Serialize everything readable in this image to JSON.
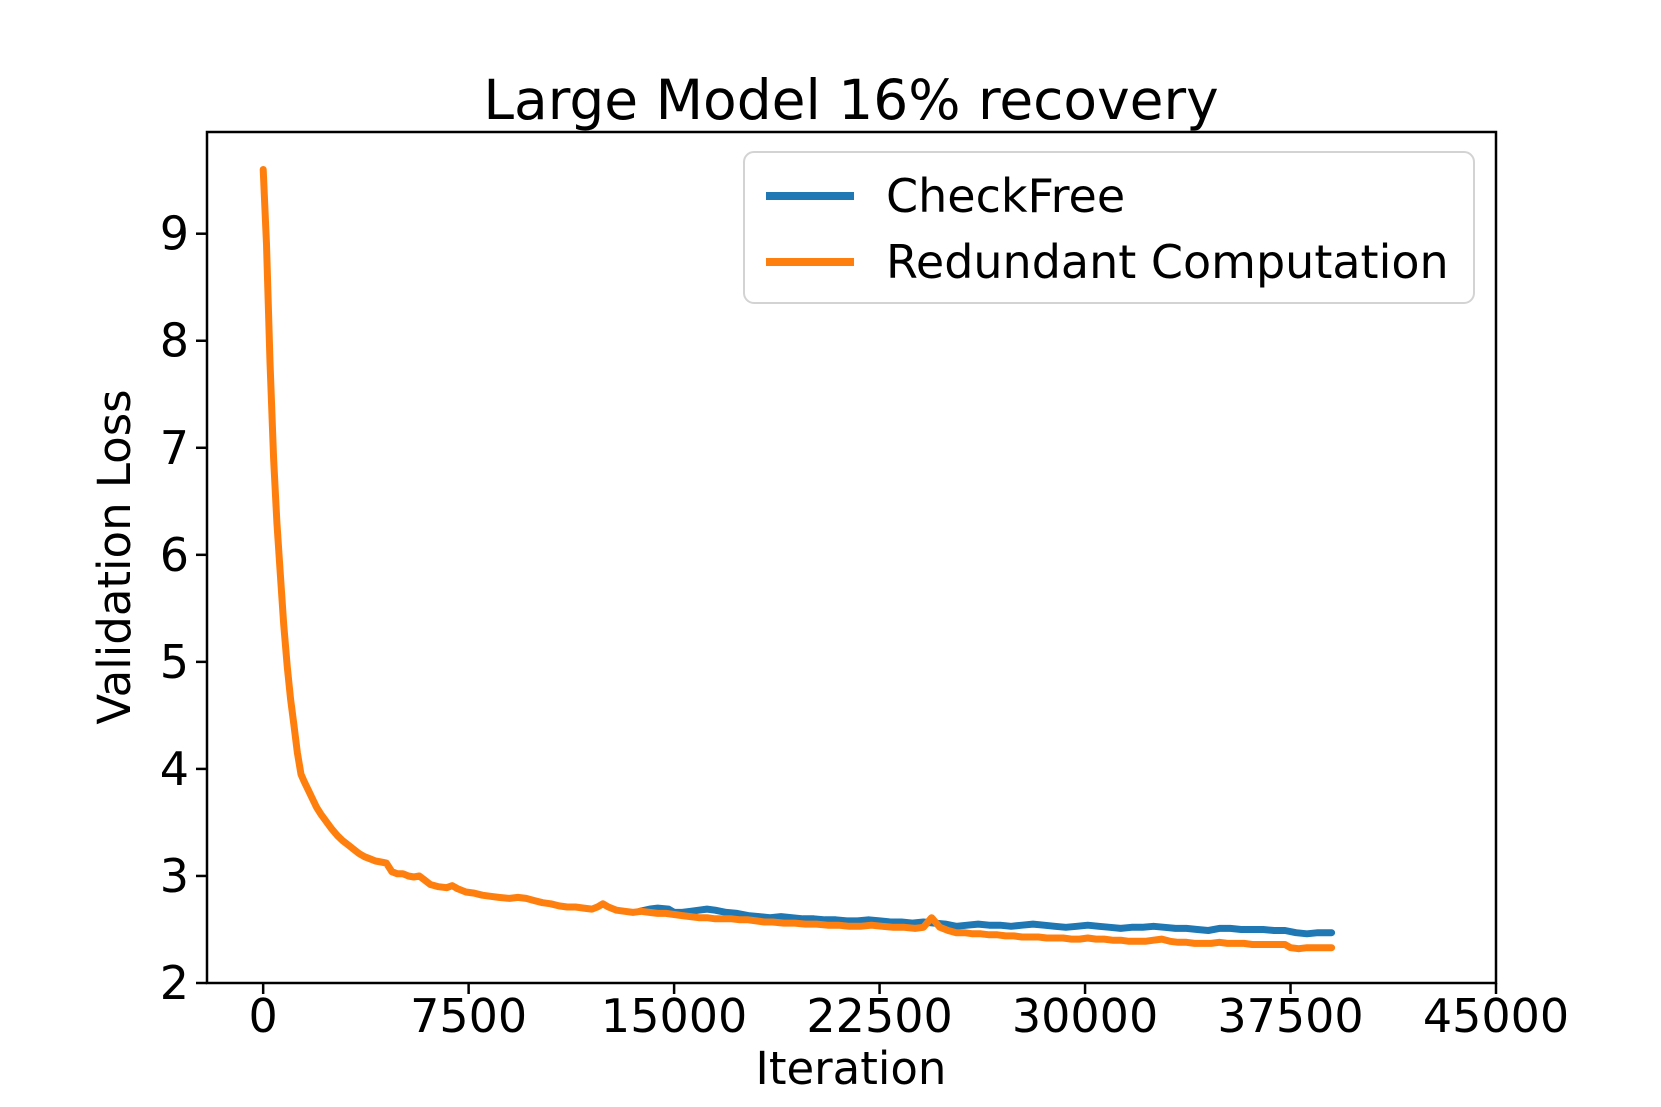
{
  "figure": {
    "background": "#ffffff",
    "axis_color": "#000000",
    "text_color": "#000000"
  },
  "chart_data": {
    "type": "line",
    "title": "Large Model 16% recovery",
    "xlabel": "Iteration",
    "ylabel": "Validation Loss",
    "xlim": [
      -2050,
      45000
    ],
    "ylim": [
      2,
      9.95
    ],
    "xticks": [
      0,
      7500,
      15000,
      22500,
      30000,
      37500,
      45000
    ],
    "yticks": [
      2,
      3,
      4,
      5,
      6,
      7,
      8,
      9
    ],
    "grid": false,
    "legend_position": "upper right",
    "series": [
      {
        "name": "CheckFree",
        "color": "#1f77b4",
        "linewidth": 7,
        "points": [
          [
            13750,
            2.67
          ],
          [
            14100,
            2.69
          ],
          [
            14400,
            2.7
          ],
          [
            14800,
            2.69
          ],
          [
            15000,
            2.66
          ],
          [
            15300,
            2.66
          ],
          [
            15600,
            2.67
          ],
          [
            15900,
            2.68
          ],
          [
            16200,
            2.69
          ],
          [
            16500,
            2.68
          ],
          [
            16900,
            2.66
          ],
          [
            17300,
            2.65
          ],
          [
            17700,
            2.63
          ],
          [
            18100,
            2.62
          ],
          [
            18500,
            2.61
          ],
          [
            18900,
            2.62
          ],
          [
            19300,
            2.61
          ],
          [
            19700,
            2.6
          ],
          [
            20100,
            2.6
          ],
          [
            20500,
            2.59
          ],
          [
            20900,
            2.59
          ],
          [
            21300,
            2.58
          ],
          [
            21700,
            2.58
          ],
          [
            22100,
            2.59
          ],
          [
            22500,
            2.58
          ],
          [
            22900,
            2.57
          ],
          [
            23300,
            2.57
          ],
          [
            23700,
            2.56
          ],
          [
            24100,
            2.57
          ],
          [
            24500,
            2.56
          ],
          [
            24900,
            2.55
          ],
          [
            25300,
            2.53
          ],
          [
            25700,
            2.54
          ],
          [
            26100,
            2.55
          ],
          [
            26500,
            2.54
          ],
          [
            26900,
            2.54
          ],
          [
            27300,
            2.53
          ],
          [
            27700,
            2.54
          ],
          [
            28100,
            2.55
          ],
          [
            28500,
            2.54
          ],
          [
            28900,
            2.53
          ],
          [
            29300,
            2.52
          ],
          [
            29700,
            2.53
          ],
          [
            30100,
            2.54
          ],
          [
            30500,
            2.53
          ],
          [
            30900,
            2.52
          ],
          [
            31300,
            2.51
          ],
          [
            31700,
            2.52
          ],
          [
            32100,
            2.52
          ],
          [
            32500,
            2.53
          ],
          [
            32900,
            2.52
          ],
          [
            33300,
            2.51
          ],
          [
            33700,
            2.51
          ],
          [
            34100,
            2.5
          ],
          [
            34500,
            2.49
          ],
          [
            34900,
            2.51
          ],
          [
            35300,
            2.51
          ],
          [
            35700,
            2.5
          ],
          [
            36100,
            2.5
          ],
          [
            36500,
            2.5
          ],
          [
            36900,
            2.49
          ],
          [
            37300,
            2.49
          ],
          [
            37700,
            2.47
          ],
          [
            38100,
            2.46
          ],
          [
            38500,
            2.47
          ],
          [
            39000,
            2.47
          ]
        ]
      },
      {
        "name": "Redundant Computation",
        "color": "#ff7f0e",
        "linewidth": 7,
        "points": [
          [
            0,
            9.6
          ],
          [
            120,
            8.9
          ],
          [
            250,
            7.8
          ],
          [
            380,
            6.9
          ],
          [
            500,
            6.3
          ],
          [
            620,
            5.85
          ],
          [
            750,
            5.35
          ],
          [
            880,
            4.95
          ],
          [
            1000,
            4.65
          ],
          [
            1120,
            4.42
          ],
          [
            1250,
            4.15
          ],
          [
            1380,
            3.95
          ],
          [
            1500,
            3.88
          ],
          [
            1650,
            3.8
          ],
          [
            1800,
            3.72
          ],
          [
            1950,
            3.64
          ],
          [
            2100,
            3.58
          ],
          [
            2300,
            3.51
          ],
          [
            2500,
            3.44
          ],
          [
            2700,
            3.38
          ],
          [
            2900,
            3.33
          ],
          [
            3100,
            3.29
          ],
          [
            3300,
            3.25
          ],
          [
            3500,
            3.21
          ],
          [
            3700,
            3.18
          ],
          [
            3900,
            3.16
          ],
          [
            4100,
            3.14
          ],
          [
            4300,
            3.13
          ],
          [
            4500,
            3.12
          ],
          [
            4700,
            3.04
          ],
          [
            4900,
            3.02
          ],
          [
            5100,
            3.02
          ],
          [
            5300,
            3.0
          ],
          [
            5500,
            2.99
          ],
          [
            5700,
            3.0
          ],
          [
            5900,
            2.96
          ],
          [
            6100,
            2.92
          ],
          [
            6400,
            2.9
          ],
          [
            6700,
            2.89
          ],
          [
            6900,
            2.91
          ],
          [
            7100,
            2.88
          ],
          [
            7400,
            2.85
          ],
          [
            7700,
            2.84
          ],
          [
            8000,
            2.82
          ],
          [
            8300,
            2.81
          ],
          [
            8600,
            2.8
          ],
          [
            9000,
            2.79
          ],
          [
            9300,
            2.8
          ],
          [
            9600,
            2.79
          ],
          [
            9900,
            2.77
          ],
          [
            10200,
            2.75
          ],
          [
            10500,
            2.74
          ],
          [
            10800,
            2.72
          ],
          [
            11100,
            2.71
          ],
          [
            11400,
            2.71
          ],
          [
            11700,
            2.7
          ],
          [
            12000,
            2.69
          ],
          [
            12200,
            2.71
          ],
          [
            12400,
            2.74
          ],
          [
            12600,
            2.71
          ],
          [
            12900,
            2.68
          ],
          [
            13200,
            2.67
          ],
          [
            13500,
            2.66
          ],
          [
            13800,
            2.67
          ],
          [
            14100,
            2.66
          ],
          [
            14400,
            2.65
          ],
          [
            14700,
            2.65
          ],
          [
            15000,
            2.64
          ],
          [
            15300,
            2.63
          ],
          [
            15600,
            2.62
          ],
          [
            15900,
            2.61
          ],
          [
            16200,
            2.61
          ],
          [
            16500,
            2.6
          ],
          [
            16800,
            2.6
          ],
          [
            17100,
            2.6
          ],
          [
            17400,
            2.59
          ],
          [
            17700,
            2.59
          ],
          [
            18000,
            2.58
          ],
          [
            18300,
            2.57
          ],
          [
            18600,
            2.57
          ],
          [
            19000,
            2.56
          ],
          [
            19400,
            2.56
          ],
          [
            19800,
            2.55
          ],
          [
            20200,
            2.55
          ],
          [
            20600,
            2.54
          ],
          [
            21000,
            2.54
          ],
          [
            21400,
            2.53
          ],
          [
            21800,
            2.53
          ],
          [
            22200,
            2.54
          ],
          [
            22600,
            2.53
          ],
          [
            23000,
            2.52
          ],
          [
            23400,
            2.52
          ],
          [
            23800,
            2.51
          ],
          [
            24100,
            2.52
          ],
          [
            24400,
            2.61
          ],
          [
            24700,
            2.52
          ],
          [
            25000,
            2.49
          ],
          [
            25300,
            2.47
          ],
          [
            25600,
            2.47
          ],
          [
            25900,
            2.46
          ],
          [
            26200,
            2.46
          ],
          [
            26500,
            2.45
          ],
          [
            26800,
            2.45
          ],
          [
            27100,
            2.44
          ],
          [
            27400,
            2.44
          ],
          [
            27700,
            2.43
          ],
          [
            28000,
            2.43
          ],
          [
            28300,
            2.43
          ],
          [
            28600,
            2.42
          ],
          [
            28900,
            2.42
          ],
          [
            29200,
            2.42
          ],
          [
            29500,
            2.41
          ],
          [
            29800,
            2.41
          ],
          [
            30100,
            2.42
          ],
          [
            30400,
            2.41
          ],
          [
            30700,
            2.41
          ],
          [
            31000,
            2.4
          ],
          [
            31300,
            2.4
          ],
          [
            31600,
            2.39
          ],
          [
            31900,
            2.39
          ],
          [
            32200,
            2.39
          ],
          [
            32500,
            2.4
          ],
          [
            32800,
            2.41
          ],
          [
            33100,
            2.39
          ],
          [
            33400,
            2.38
          ],
          [
            33700,
            2.38
          ],
          [
            34000,
            2.37
          ],
          [
            34300,
            2.37
          ],
          [
            34600,
            2.37
          ],
          [
            34900,
            2.38
          ],
          [
            35200,
            2.37
          ],
          [
            35500,
            2.37
          ],
          [
            35800,
            2.37
          ],
          [
            36100,
            2.36
          ],
          [
            36400,
            2.36
          ],
          [
            36700,
            2.36
          ],
          [
            37000,
            2.36
          ],
          [
            37300,
            2.36
          ],
          [
            37500,
            2.33
          ],
          [
            37800,
            2.32
          ],
          [
            38100,
            2.33
          ],
          [
            38400,
            2.33
          ],
          [
            38700,
            2.33
          ],
          [
            39000,
            2.33
          ]
        ]
      }
    ]
  }
}
